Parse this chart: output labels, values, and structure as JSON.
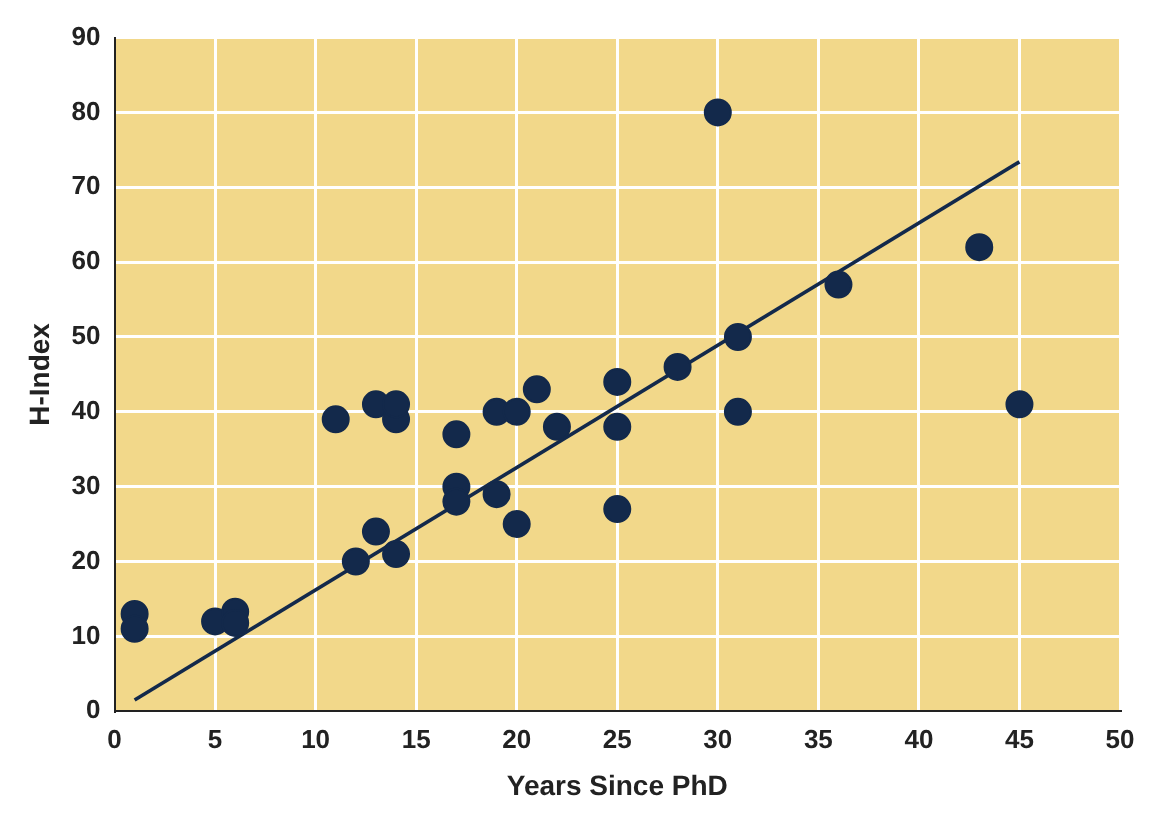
{
  "chart_data": {
    "type": "scatter",
    "xlabel": "Years Since PhD",
    "ylabel": "H-Index",
    "xlim": [
      0,
      50
    ],
    "xticks": [
      0,
      5,
      10,
      15,
      20,
      25,
      30,
      35,
      40,
      45,
      50
    ],
    "ylim": [
      0,
      90
    ],
    "yticks": [
      0,
      10,
      20,
      30,
      40,
      50,
      60,
      70,
      80,
      90
    ],
    "grid": true,
    "legend": false,
    "marker": "circle",
    "series": [
      {
        "type": "scatter",
        "color": "#13294b",
        "x": [
          1,
          1,
          5,
          6,
          6,
          11,
          12,
          13,
          13,
          14,
          14,
          14,
          17,
          17,
          17,
          19,
          19,
          20,
          20,
          21,
          22,
          25,
          25,
          25,
          28,
          30,
          31,
          31,
          36,
          43,
          45
        ],
        "values": [
          13,
          11,
          12,
          13.3,
          11.8,
          39,
          20,
          24,
          41,
          39,
          41,
          21,
          37,
          30,
          28,
          29,
          40,
          40,
          25,
          43,
          38,
          44,
          38,
          27,
          46,
          80,
          50,
          40,
          57,
          62,
          41
        ]
      },
      {
        "type": "line",
        "color": "#13294b",
        "marker": "none",
        "x": [
          1,
          45
        ],
        "values": [
          1.5,
          73.4
        ]
      }
    ]
  }
}
